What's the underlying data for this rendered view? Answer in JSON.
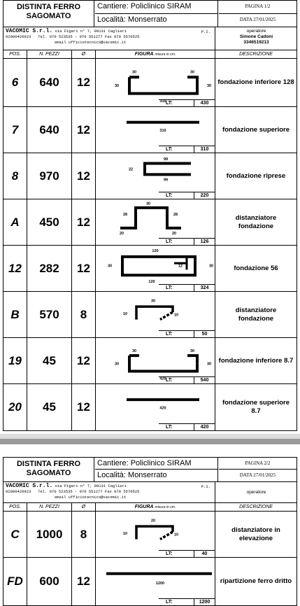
{
  "sheet1": {
    "title_line1": "DISTINTA  FERRO",
    "title_line2": "SAGOMATO",
    "cantiere": "Cantiere:  Policlinico SIRAM",
    "localita": "Località:  Monserrato",
    "pagina": "PAGINA 1/2",
    "data": "DATA 27/01/2025",
    "company_name": "VACOMIC S.r.l.",
    "company_addr": "via Figari n° 7, 09131 Cagliari",
    "pi": "P.I.",
    "piva": "02000420923",
    "phones": "Tel. 070 523535 - 070 551277  Fax 070 5570525",
    "email": "email ufficiotecnico@vacomic.it",
    "operatore_label": "operatore",
    "operatore_name": "Simone Cadoni",
    "operatore_phone": "3346519213",
    "rows": [
      {
        "pos": "6",
        "n": "640",
        "d": "12",
        "desc": "fondazione inferiore 128",
        "lt": "430",
        "dims": {
          "a": "30",
          "b": "30",
          "left": "30",
          "right": "30",
          "bottom": "310"
        }
      },
      {
        "pos": "7",
        "n": "640",
        "d": "12",
        "desc": "fondazione superiore",
        "lt": "310",
        "dims": {
          "len": "310"
        }
      },
      {
        "pos": "8",
        "n": "970",
        "d": "12",
        "desc": "fondazione riprese",
        "lt": "220",
        "dims": {
          "top": "99",
          "side": "22",
          "bottom": "99"
        }
      },
      {
        "pos": "A",
        "n": "450",
        "d": "12",
        "desc": "distanziatore fondazione",
        "lt": "126",
        "dims": {
          "top": "30",
          "h1": "28",
          "h2": "28",
          "f1": "20",
          "f2": "20"
        }
      },
      {
        "pos": "12",
        "n": "282",
        "d": "12",
        "desc": "fondazione 56",
        "lt": "324",
        "dims": {
          "top": "120",
          "left": "30",
          "inner": "12",
          "right": "30",
          "bottom": "120"
        }
      },
      {
        "pos": "B",
        "n": "570",
        "d": "8",
        "desc": "distanziatore fondazione",
        "lt": "50",
        "dims": {
          "top": "30",
          "left": "10",
          "hook": "10"
        }
      },
      {
        "pos": "19",
        "n": "45",
        "d": "12",
        "desc": "fondazione inferiore 8.7",
        "lt": "540",
        "dims": {
          "a": "30",
          "b": "30",
          "left": "30",
          "right": "30",
          "bottom": "420"
        }
      },
      {
        "pos": "20",
        "n": "45",
        "d": "12",
        "desc": "fondazione superiore 8.7",
        "lt": "420",
        "dims": {
          "len": "420"
        }
      }
    ]
  },
  "sheet2": {
    "title_line1": "DISTINTA  FERRO",
    "title_line2": "SAGOMATO",
    "cantiere": "Cantiere:  Policlinico SIRAM",
    "localita": "Località:  Monserrato",
    "pagina": "PAGINA 2/2",
    "data": "DATA 27/01/2025",
    "company_name": "VACOMIC S.r.l.",
    "company_addr": "via Figari n° 7, 09131 Cagliari",
    "pi": "P.I.",
    "piva": "02000420923",
    "phones": "Tel. 070 523535 - 070 551277  Fax 070 5570525",
    "email": "email ufficiotecnico@vacomic.it",
    "operatore_label": "operatore",
    "rows": [
      {
        "pos": "C",
        "n": "1000",
        "d": "8",
        "desc": "distanziatore in elevazione",
        "lt": "40",
        "dims": {
          "top": "20",
          "left": "10",
          "hook": "10"
        }
      },
      {
        "pos": "FD",
        "n": "600",
        "d": "12",
        "desc": "ripartizione ferro dritto",
        "lt": "1200",
        "dims": {
          "len": "1200"
        }
      }
    ]
  },
  "columns": {
    "pos": "POS.",
    "n": "N. PEZZI",
    "d": "Ø",
    "fig": "FIGURA",
    "fig_small": "misura in cm.",
    "desc": "DESCRIZIONE"
  },
  "lt_label": "LT:"
}
